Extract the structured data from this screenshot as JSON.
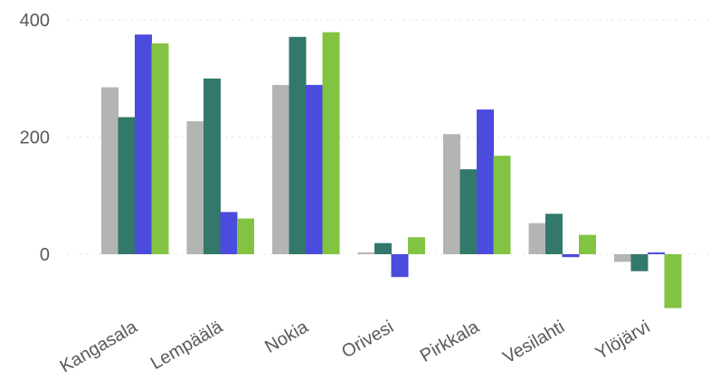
{
  "chart_data": {
    "type": "bar",
    "categories": [
      "Kangasala",
      "Lempäälä",
      "Nokia",
      "Orivesi",
      "Pirkkala",
      "Vesilahti",
      "Ylöjärvi"
    ],
    "series": [
      {
        "color": "#b4b4b4",
        "values": [
          285,
          227,
          289,
          3,
          205,
          53,
          -13
        ]
      },
      {
        "color": "#33796b",
        "values": [
          234,
          300,
          371,
          19,
          145,
          69,
          -29
        ]
      },
      {
        "color": "#4b4bde",
        "values": [
          375,
          72,
          289,
          -39,
          247,
          -5,
          3
        ]
      },
      {
        "color": "#82c341",
        "values": [
          360,
          61,
          379,
          29,
          168,
          33,
          -92
        ]
      }
    ],
    "ylim": [
      -92,
      400
    ],
    "yticks": [
      0,
      200,
      400
    ],
    "grid": true,
    "title": "",
    "xlabel": "",
    "ylabel": ""
  }
}
